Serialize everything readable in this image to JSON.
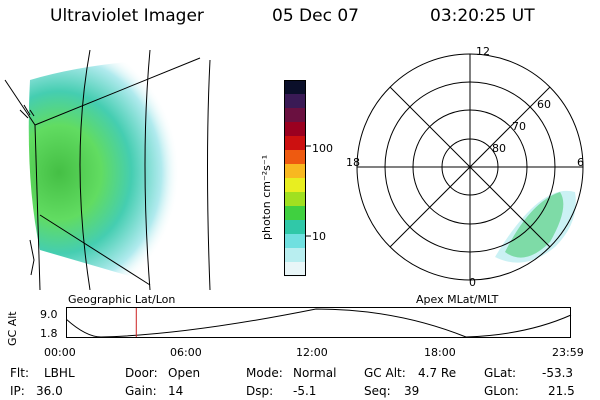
{
  "header": {
    "instrument": "Ultraviolet Imager",
    "date": "05 Dec 07",
    "time": "03:20:25 UT"
  },
  "left_panel": {
    "caption": "Geographic Lat/Lon"
  },
  "colorbar": {
    "unit_label": "photon cm⁻²s⁻¹",
    "ticks": [
      "100",
      "10"
    ],
    "colors": [
      "#0b0f2a",
      "#3a1a55",
      "#6a1040",
      "#9a0020",
      "#cc1010",
      "#ee5a10",
      "#f8b820",
      "#e8ee20",
      "#a0e020",
      "#40d040",
      "#30c8a8",
      "#70e0e0",
      "#b8eef0",
      "#e8f6f8"
    ]
  },
  "polar_panel": {
    "caption": "Apex MLat/MLT",
    "mlt_labels": {
      "top": "12",
      "left": "18",
      "right": "6",
      "bottom": "0"
    },
    "lat_labels": [
      "60",
      "70",
      "80"
    ]
  },
  "altitude_strip": {
    "ylabel": "GC Alt",
    "ymax": "9.0",
    "ymin": "1.8",
    "xticks": [
      "00:00",
      "06:00",
      "12:00",
      "18:00",
      "23:59"
    ],
    "marker_time_hours": 3.34
  },
  "info": {
    "flt_label": "Flt:",
    "flt_value": "LBHL",
    "ip_label": "IP:",
    "ip_value": "36.0",
    "door_label": "Door:",
    "door_value": "Open",
    "gain_label": "Gain:",
    "gain_value": "14",
    "mode_label": "Mode:",
    "mode_value": "Normal",
    "dsp_label": "Dsp:",
    "dsp_value": "-5.1",
    "gcalt_label": "GC Alt:",
    "gcalt_value": "4.7 Re",
    "seq_label": "Seq:",
    "seq_value": "39",
    "glat_label": "GLat:",
    "glat_value": "-53.3",
    "glon_label": "GLon:",
    "glon_value": "21.5"
  }
}
